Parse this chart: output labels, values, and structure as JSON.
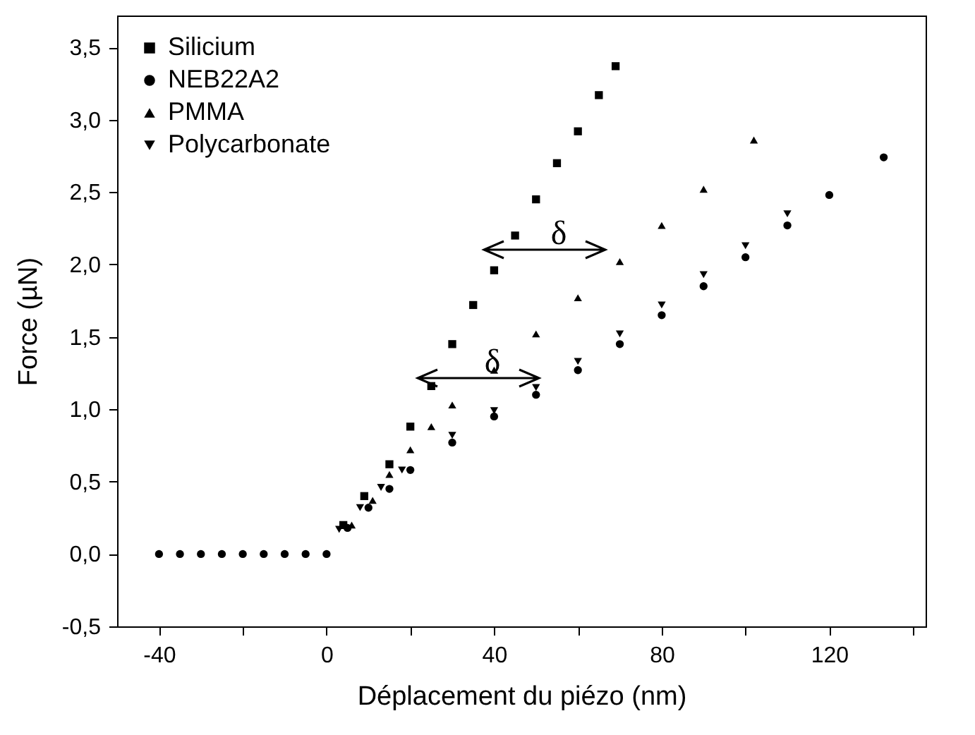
{
  "chart_data": {
    "type": "scatter",
    "xlabel": "Déplacement du piézo (nm)",
    "ylabel": "Force (µN)",
    "xlim": [
      -50,
      143
    ],
    "ylim": [
      -0.5,
      3.72
    ],
    "xticks": [
      -40,
      {
        "value": -20,
        "label": null
      },
      0,
      {
        "value": 20,
        "label": null
      },
      40,
      {
        "value": 60,
        "label": null
      },
      80,
      {
        "value": 100,
        "label": null
      },
      120,
      {
        "value": 140,
        "label": null
      }
    ],
    "yticks": [
      {
        "value": -0.5,
        "label": "-0,5"
      },
      {
        "value": 0,
        "label": "0,0"
      },
      {
        "value": 0.5,
        "label": "0,5"
      },
      {
        "value": 1,
        "label": "1,0"
      },
      {
        "value": 1.5,
        "label": "1,5"
      },
      {
        "value": 2,
        "label": "2,0"
      },
      {
        "value": 2.5,
        "label": "2,5"
      },
      {
        "value": 3,
        "label": "3,0"
      },
      {
        "value": 3.5,
        "label": "3,5"
      }
    ],
    "legend": "top left",
    "grid": false,
    "annotations": [
      "δ",
      "δ"
    ],
    "series": [
      {
        "name": "Silicium",
        "color": "#000000",
        "marker": "square",
        "x": [
          4,
          9,
          15,
          20,
          25,
          30,
          35,
          40,
          45,
          50,
          55,
          60,
          65,
          69
        ],
        "values": [
          0.2,
          0.4,
          0.62,
          0.88,
          1.16,
          1.45,
          1.72,
          1.96,
          2.2,
          2.45,
          2.7,
          2.92,
          3.17,
          3.37
        ]
      },
      {
        "name": "NEB22A2",
        "color": "#000000",
        "marker": "circle",
        "x": [
          -40,
          -35,
          -30,
          -25,
          -20,
          -15,
          -10,
          -5,
          0,
          5,
          10,
          15,
          20,
          30,
          40,
          50,
          60,
          70,
          80,
          90,
          100,
          110,
          120,
          133
        ],
        "values": [
          0,
          0,
          0,
          0,
          0,
          0,
          0,
          0,
          0,
          0.18,
          0.32,
          0.45,
          0.58,
          0.77,
          0.95,
          1.1,
          1.27,
          1.45,
          1.65,
          1.85,
          2.05,
          2.27,
          2.48,
          2.74
        ]
      },
      {
        "name": "PMMA",
        "color": "#000000",
        "marker": "triangle",
        "x": [
          6,
          11,
          15,
          20,
          25,
          30,
          40,
          50,
          60,
          70,
          80,
          90,
          102
        ],
        "values": [
          0.2,
          0.37,
          0.55,
          0.72,
          0.88,
          1.03,
          1.27,
          1.52,
          1.77,
          2.02,
          2.27,
          2.52,
          2.86
        ]
      },
      {
        "name": "Polycarbonate",
        "color": "#000000",
        "marker": "triangle-down",
        "x": [
          3,
          8,
          13,
          18,
          30,
          40,
          50,
          60,
          70,
          80,
          90,
          100,
          110
        ],
        "values": [
          0.17,
          0.32,
          0.46,
          0.58,
          0.82,
          0.99,
          1.15,
          1.33,
          1.52,
          1.72,
          1.93,
          2.13,
          2.35
        ]
      }
    ]
  }
}
